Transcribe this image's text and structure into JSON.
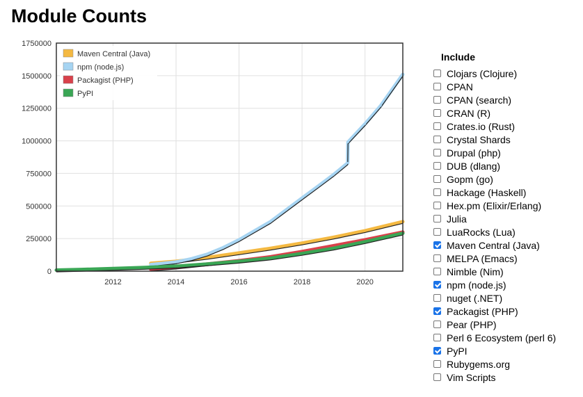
{
  "page": {
    "title": "Module Counts"
  },
  "include": {
    "title": "Include",
    "options": [
      {
        "label": "Clojars (Clojure)",
        "checked": false
      },
      {
        "label": "CPAN",
        "checked": false
      },
      {
        "label": "CPAN (search)",
        "checked": false
      },
      {
        "label": "CRAN (R)",
        "checked": false
      },
      {
        "label": "Crates.io (Rust)",
        "checked": false
      },
      {
        "label": "Crystal Shards",
        "checked": false
      },
      {
        "label": "Drupal (php)",
        "checked": false
      },
      {
        "label": "DUB (dlang)",
        "checked": false
      },
      {
        "label": "Gopm (go)",
        "checked": false
      },
      {
        "label": "Hackage (Haskell)",
        "checked": false
      },
      {
        "label": "Hex.pm (Elixir/Erlang)",
        "checked": false
      },
      {
        "label": "Julia",
        "checked": false
      },
      {
        "label": "LuaRocks (Lua)",
        "checked": false
      },
      {
        "label": "Maven Central (Java)",
        "checked": true
      },
      {
        "label": "MELPA (Emacs)",
        "checked": false
      },
      {
        "label": "Nimble (Nim)",
        "checked": false
      },
      {
        "label": "npm (node.js)",
        "checked": true
      },
      {
        "label": "nuget (.NET)",
        "checked": false
      },
      {
        "label": "Packagist (PHP)",
        "checked": true
      },
      {
        "label": "Pear (PHP)",
        "checked": false
      },
      {
        "label": "Perl 6 Ecosystem (perl 6)",
        "checked": false
      },
      {
        "label": "PyPI",
        "checked": true
      },
      {
        "label": "Rubygems.org",
        "checked": false
      },
      {
        "label": "Vim Scripts",
        "checked": false
      }
    ]
  },
  "chart_data": {
    "type": "line",
    "title": "Module Counts",
    "xlabel": "",
    "ylabel": "",
    "xlim": [
      2010.2,
      2021.2
    ],
    "ylim": [
      0,
      1750000
    ],
    "x_ticks": [
      2012,
      2014,
      2016,
      2018,
      2020
    ],
    "y_ticks": [
      0,
      250000,
      500000,
      750000,
      1000000,
      1250000,
      1500000,
      1750000
    ],
    "grid": true,
    "legend_position": "top-left",
    "series": [
      {
        "name": "Maven Central (Java)",
        "color": "#f4b942",
        "x": [
          2013.2,
          2014,
          2015,
          2016,
          2017,
          2018,
          2019,
          2020,
          2021.2
        ],
        "y": [
          60000,
          75000,
          105000,
          140000,
          175000,
          215000,
          260000,
          310000,
          380000
        ]
      },
      {
        "name": "npm (node.js)",
        "color": "#a6d4f2",
        "x": [
          2013.2,
          2014,
          2014.5,
          2015,
          2015.5,
          2016,
          2016.5,
          2017,
          2017.5,
          2018,
          2018.5,
          2019,
          2019.45,
          2019.46,
          2020,
          2020.5,
          2021.2
        ],
        "y": [
          50000,
          70000,
          95000,
          130000,
          180000,
          240000,
          310000,
          380000,
          470000,
          560000,
          650000,
          740000,
          830000,
          990000,
          1130000,
          1270000,
          1510000
        ]
      },
      {
        "name": "Packagist (PHP)",
        "color": "#d9414b",
        "x": [
          2013.2,
          2014,
          2015,
          2016,
          2017,
          2018,
          2019,
          2020,
          2021.2
        ],
        "y": [
          15000,
          30000,
          55000,
          80000,
          110000,
          150000,
          195000,
          240000,
          300000
        ]
      },
      {
        "name": "PyPI",
        "color": "#3aa655",
        "x": [
          2010.2,
          2011,
          2012,
          2013,
          2014,
          2015,
          2016,
          2017,
          2018,
          2019,
          2020,
          2021.2
        ],
        "y": [
          8000,
          13000,
          20000,
          28000,
          38000,
          55000,
          75000,
          100000,
          135000,
          175000,
          225000,
          290000
        ]
      }
    ]
  }
}
